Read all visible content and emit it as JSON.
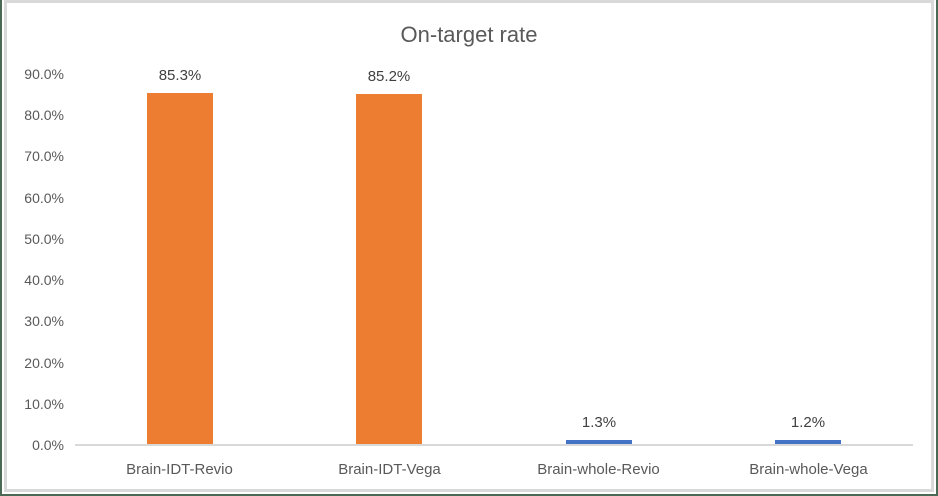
{
  "window": {
    "outer_border_color": "#4a6a55",
    "inner_border_color": "#d9d9d9",
    "background": "#ffffff"
  },
  "chart_data": {
    "type": "bar",
    "title": "On-target rate",
    "categories": [
      "Brain-IDT-Revio",
      "Brain-IDT-Vega",
      "Brain-whole-Revio",
      "Brain-whole-Vega"
    ],
    "values": [
      85.3,
      85.2,
      1.3,
      1.2
    ],
    "value_labels": [
      "85.3%",
      "85.2%",
      "1.3%",
      "1.2%"
    ],
    "bar_colors": [
      "#ED7D31",
      "#ED7D31",
      "#4472C4",
      "#4472C4"
    ],
    "y_ticks": [
      {
        "value": 90,
        "label": "90.0%"
      },
      {
        "value": 80,
        "label": "80.0%"
      },
      {
        "value": 70,
        "label": "70.0%"
      },
      {
        "value": 60,
        "label": "60.0%"
      },
      {
        "value": 50,
        "label": "50.0%"
      },
      {
        "value": 40,
        "label": "40.0%"
      },
      {
        "value": 30,
        "label": "30.0%"
      },
      {
        "value": 20,
        "label": "20.0%"
      },
      {
        "value": 10,
        "label": "10.0%"
      },
      {
        "value": 0,
        "label": "0.0%"
      }
    ],
    "ylim": [
      0,
      90
    ],
    "xlabel": "",
    "ylabel": "",
    "grid": false,
    "legend": "none",
    "title_color": "#595959",
    "tick_label_color": "#595959",
    "category_label_color": "#595959",
    "data_label_color": "#404040",
    "axis_line_color": "#d9d9d9"
  }
}
